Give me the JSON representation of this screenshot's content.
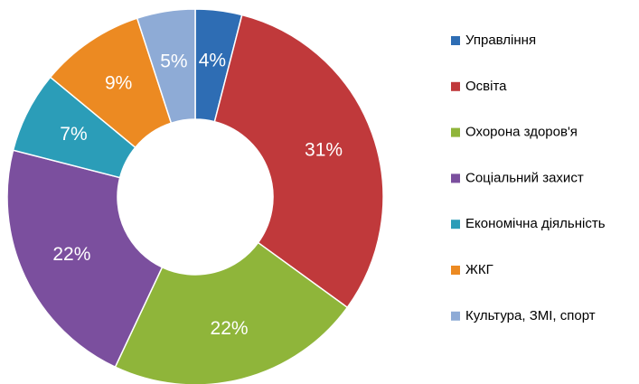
{
  "chart_data": {
    "type": "donut",
    "categories": [
      "Управління",
      "Освіта",
      "Охорона здоров'я",
      "Соціальний захист",
      "Економічна діяльність",
      "ЖКГ",
      "Культура, ЗМІ, спорт"
    ],
    "values": [
      4,
      31,
      22,
      22,
      7,
      9,
      5
    ],
    "value_labels": [
      "4%",
      "31%",
      "22%",
      "22%",
      "7%",
      "9%",
      "5%"
    ],
    "colors": [
      "#2e6db4",
      "#c0393b",
      "#8fb53a",
      "#7b4f9e",
      "#2b9db8",
      "#ec8a22",
      "#8eabd6"
    ],
    "legend": "right"
  }
}
